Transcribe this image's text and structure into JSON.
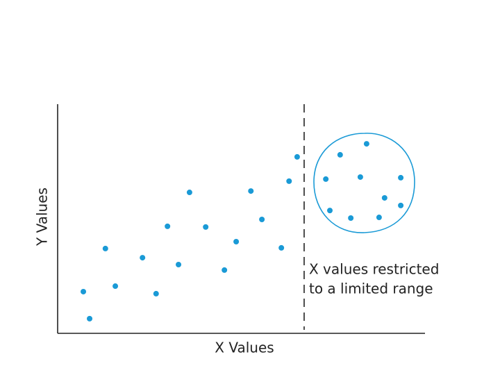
{
  "chart_data": {
    "type": "scatter",
    "x_label": "X Values",
    "y_label": "Y Values",
    "annotation": [
      "X values restricted",
      "to a limited range"
    ],
    "cutoff_x": 67.1,
    "xlim": [
      0,
      100
    ],
    "ylim": [
      0,
      100
    ],
    "color": "#1a9ad6",
    "x": [
      7.0,
      8.7,
      13.0,
      15.7,
      23.1,
      26.8,
      29.9,
      32.9,
      35.9,
      40.3,
      45.4,
      48.6,
      52.6,
      55.6,
      60.9,
      63.0,
      65.2,
      76.9,
      84.1,
      73.0,
      82.4,
      93.4,
      89.0,
      93.4,
      74.1,
      79.8,
      87.5
    ],
    "values": [
      18.2,
      6.4,
      37.0,
      20.6,
      33.0,
      17.3,
      46.7,
      30.0,
      61.5,
      46.4,
      27.6,
      40.0,
      62.1,
      49.7,
      37.3,
      66.4,
      77.0,
      77.9,
      82.7,
      67.3,
      68.2,
      67.9,
      59.1,
      55.8,
      53.6,
      50.3,
      50.6
    ]
  }
}
